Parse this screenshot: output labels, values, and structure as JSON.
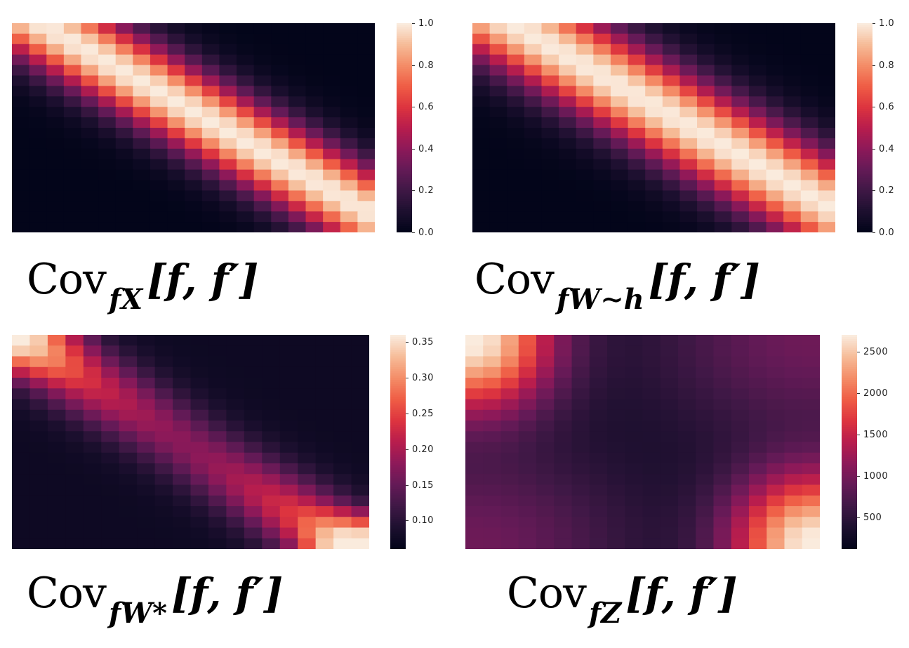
{
  "chart_data": [
    {
      "type": "heatmap",
      "pattern": "diagonal",
      "caption": {
        "prefix": "Cov",
        "sub": "fX",
        "bracket": "[f, f′]"
      },
      "rows": 20,
      "cols": 21,
      "colorbar": {
        "min": 0.0,
        "max": 1.0,
        "ticks": [
          "0.0",
          "0.2",
          "0.4",
          "0.6",
          "0.8",
          "1.0"
        ]
      },
      "colormap": "rocket"
    },
    {
      "type": "heatmap",
      "pattern": "diagonal-wide",
      "caption": {
        "prefix": "Cov",
        "sub": "fW∼h",
        "bracket": "[f, f′]"
      },
      "rows": 20,
      "cols": 21,
      "colorbar": {
        "min": 0.0,
        "max": 1.0,
        "ticks": [
          "0.0",
          "0.2",
          "0.4",
          "0.6",
          "0.8",
          "1.0"
        ]
      },
      "colormap": "rocket"
    },
    {
      "type": "heatmap",
      "pattern": "diffuse-diagonal",
      "caption": {
        "prefix": "Cov",
        "sub": "fW*",
        "bracket": "[f, f′]"
      },
      "rows": 20,
      "cols": 20,
      "colorbar": {
        "min": 0.06,
        "max": 0.36,
        "ticks": [
          "0.10",
          "0.15",
          "0.20",
          "0.25",
          "0.30",
          "0.35"
        ]
      },
      "colormap": "rocket"
    },
    {
      "type": "heatmap",
      "pattern": "corners",
      "caption": {
        "prefix": "Cov",
        "sub": "fZ",
        "bracket": "[f, f′]"
      },
      "rows": 20,
      "cols": 20,
      "colorbar": {
        "min": 120,
        "max": 2700,
        "ticks": [
          "500",
          "1000",
          "1500",
          "2000",
          "2500"
        ]
      },
      "colormap": "rocket"
    }
  ]
}
